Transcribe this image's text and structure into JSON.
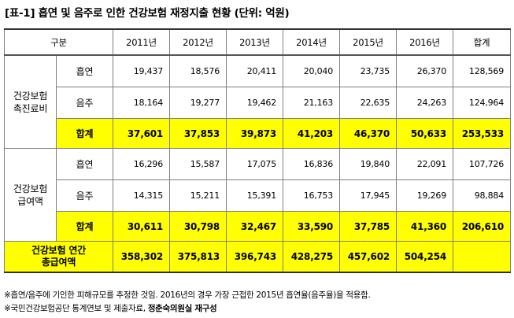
{
  "title": "[표-1] 흡연 및 음주로 인한 건강보험 재정지출 현황 (단위: 억원)",
  "columns": [
    "구분",
    "2011년",
    "2012년",
    "2013년",
    "2014년",
    "2015년",
    "2016년",
    "합계"
  ],
  "groups": [
    {
      "label_line1": "건강보험",
      "label_line2": "촉진료비",
      "rows": [
        {
          "label": "흡연",
          "values": [
            "19,437",
            "18,576",
            "20,411",
            "20,040",
            "23,735",
            "26,370",
            "128,569"
          ]
        },
        {
          "label": "음주",
          "values": [
            "18,164",
            "19,277",
            "19,462",
            "21,163",
            "22,635",
            "24,263",
            "124,964"
          ]
        }
      ],
      "sum": {
        "label": "합계",
        "values": [
          "37,601",
          "37,853",
          "39,873",
          "41,203",
          "46,370",
          "50,633",
          "253,533"
        ]
      }
    },
    {
      "label_line1": "건강보험",
      "label_line2": "급여액",
      "rows": [
        {
          "label": "흡연",
          "values": [
            "16,296",
            "15,587",
            "17,075",
            "16,836",
            "19,840",
            "22,091",
            "107,726"
          ]
        },
        {
          "label": "음주",
          "values": [
            "14,315",
            "15,211",
            "15,391",
            "16,753",
            "17,945",
            "19,269",
            "98,884"
          ]
        }
      ],
      "sum": {
        "label": "합계",
        "values": [
          "30,611",
          "30,798",
          "32,467",
          "33,590",
          "37,785",
          "41,360",
          "206,610"
        ]
      }
    }
  ],
  "total": {
    "label_line1": "건강보험 연간",
    "label_line2": "총급여액",
    "values": [
      "358,302",
      "375,813",
      "396,743",
      "428,275",
      "457,602",
      "504,254",
      ""
    ]
  },
  "notes": {
    "line1": "※흡연/음주에 기인한 피해규모를 추정한 것임. 2016년의 경우 가장 근접한 2015년 흡연율(음주율)을 적용함.",
    "line2_prefix": "※국민건강보험공단 통계연보 및 제출자료, ",
    "line2_bold": "정춘숙의원실 재구성"
  }
}
